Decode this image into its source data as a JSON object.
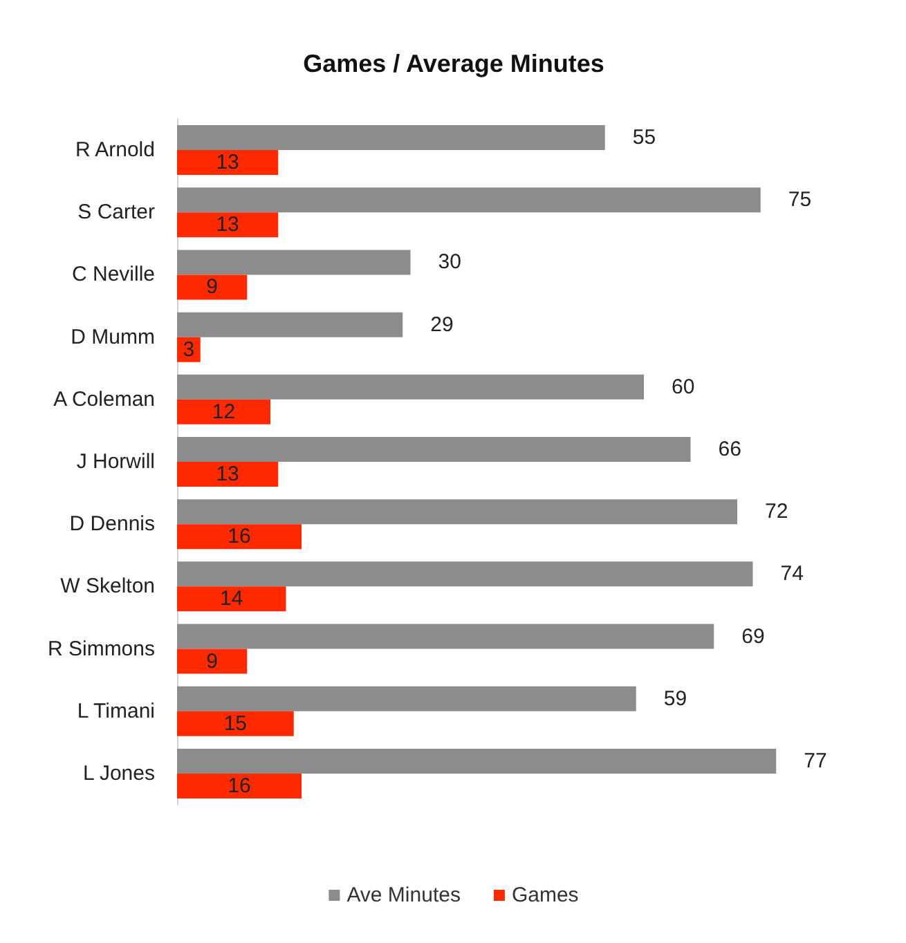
{
  "chart_data": {
    "type": "bar",
    "title": "Games / Average Minutes",
    "orientation": "horizontal",
    "categories": [
      "R Arnold",
      "S Carter",
      "C Neville",
      "D Mumm",
      "A Coleman",
      "J Horwill",
      "D Dennis",
      "W Skelton",
      "R Simmons",
      "L Timani",
      "L Jones"
    ],
    "series": [
      {
        "name": "Ave Minutes",
        "color": "#8c8c8c",
        "values": [
          55,
          75,
          30,
          29,
          60,
          66,
          72,
          74,
          69,
          59,
          77
        ]
      },
      {
        "name": "Games",
        "color": "#ff2a00",
        "values": [
          13,
          13,
          9,
          3,
          12,
          13,
          16,
          14,
          9,
          15,
          16
        ]
      }
    ],
    "data_labels": true,
    "legend": "bottom"
  }
}
